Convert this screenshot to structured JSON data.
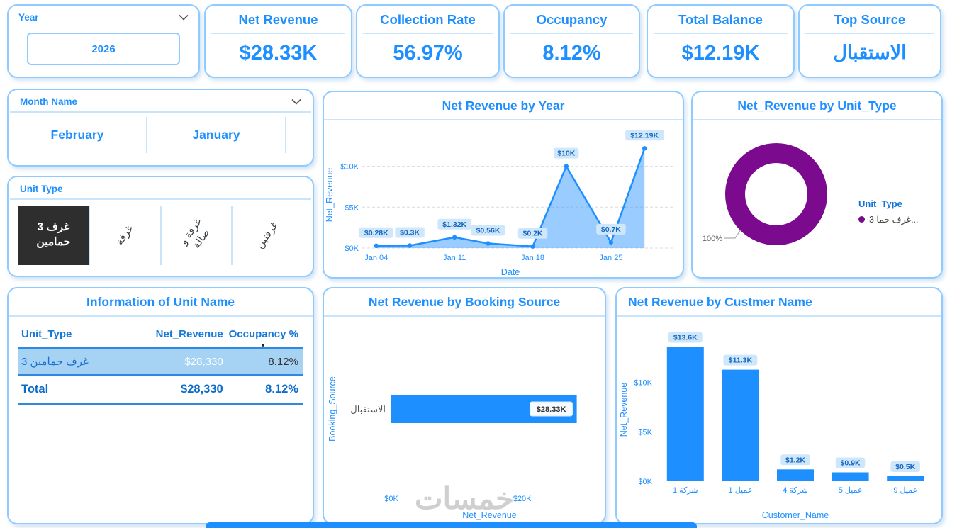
{
  "theme": {
    "accent": "#1E8FFF",
    "card_border": "#8FCBFF",
    "divider": "#C9E5FB",
    "line_strong": "#2F89E0",
    "purple": "#7B0A8F",
    "pill_bg": "#CFE7FB",
    "row_highlight": "#A6D2F4",
    "tile_bg": "#2E2E2E"
  },
  "filters": {
    "year": {
      "label": "Year",
      "value": "2026"
    },
    "month": {
      "label": "Month Name",
      "options": [
        {
          "label": "February"
        },
        {
          "label": "January"
        }
      ]
    },
    "unit_type": {
      "label": "Unit Type",
      "options": [
        {
          "label": "غرف 3 حمامين",
          "selected": true
        },
        {
          "label": "غرفة",
          "selected": false
        },
        {
          "label": "غرفة و صالة",
          "selected": false
        },
        {
          "label": "غرفتين",
          "selected": false
        }
      ]
    }
  },
  "kpis": [
    {
      "title": "Net Revenue",
      "value": "$28.33K"
    },
    {
      "title": "Collection Rate",
      "value": "56.97%"
    },
    {
      "title": "Occupancy",
      "value": "8.12%"
    },
    {
      "title": "Total Balance",
      "value": "$12.19K"
    },
    {
      "title": "Top Source",
      "value": "الاستقبال"
    }
  ],
  "table": {
    "title": "Information of Unit Name",
    "headers": [
      "Unit_Type",
      "Net_Revenue",
      "Occupancy %"
    ],
    "rows": [
      [
        "غرف حمامين 3",
        "$28,330",
        "8.12%"
      ]
    ],
    "total": [
      "Total",
      "$28,330",
      "8.12%"
    ]
  },
  "icons": {
    "sort_desc": "▼"
  },
  "watermark": "خمسات",
  "chart_data": [
    {
      "type": "area",
      "title": "Net Revenue by Year",
      "xlabel": "Date",
      "ylabel": "Net_Revenue",
      "x_days": [
        4,
        7,
        11,
        14,
        18,
        21,
        25,
        28
      ],
      "values": [
        0.28,
        0.3,
        1.32,
        0.56,
        0.2,
        10,
        0.7,
        12.19
      ],
      "labels": [
        "$0.28K",
        "$0.3K",
        "$1.32K",
        "$0.56K",
        "$0.2K",
        "$10K",
        "$0.7K",
        "$12.19K"
      ],
      "x_ticks": [
        "Jan 04",
        "Jan 11",
        "Jan 18",
        "Jan 25"
      ],
      "x_tick_days": [
        4,
        11,
        18,
        25
      ],
      "y_ticks": [
        "$0K",
        "$5K",
        "$10K"
      ],
      "y_tick_values": [
        0,
        5,
        10
      ],
      "xlim": [
        3,
        29
      ],
      "ylim": [
        0,
        13
      ],
      "grid": "horizontal-dashed",
      "legend": "none"
    },
    {
      "type": "pie",
      "title": "Net_Revenue by Unit_Type",
      "legend_title": "Unit_Type",
      "legend_position": "right",
      "slices": [
        {
          "label": "غرف حما 3...",
          "value": 100,
          "pct_label": "100%",
          "color": "#7B0A8F"
        }
      ]
    },
    {
      "type": "bar",
      "orientation": "horizontal",
      "title": "Net Revenue by Booking Source",
      "categories": [
        "الاستقبال"
      ],
      "values": [
        28.33
      ],
      "labels": [
        "$28.33K"
      ],
      "x_ticks": [
        "$0K",
        "$20K"
      ],
      "x_tick_values": [
        0,
        20
      ],
      "xlim": [
        0,
        30
      ],
      "xlabel": "Net_Revenue",
      "ylabel": "Booking_Source",
      "grid": "off"
    },
    {
      "type": "bar",
      "orientation": "vertical",
      "title": "Net Revenue by Custmer Name",
      "categories": [
        "شركة 1",
        "عميل 1",
        "شركة 4",
        "عميل 5",
        "عميل 9"
      ],
      "values": [
        13.6,
        11.3,
        1.2,
        0.9,
        0.5
      ],
      "labels": [
        "$13.6K",
        "$11.3K",
        "$1.2K",
        "$0.9K",
        "$0.5K"
      ],
      "y_ticks": [
        "$0K",
        "$5K",
        "$10K"
      ],
      "y_tick_values": [
        0,
        5,
        10
      ],
      "ylim": [
        0,
        14.5
      ],
      "xlabel": "Customer_Name",
      "ylabel": "Net_Revenue",
      "grid": "off"
    }
  ]
}
